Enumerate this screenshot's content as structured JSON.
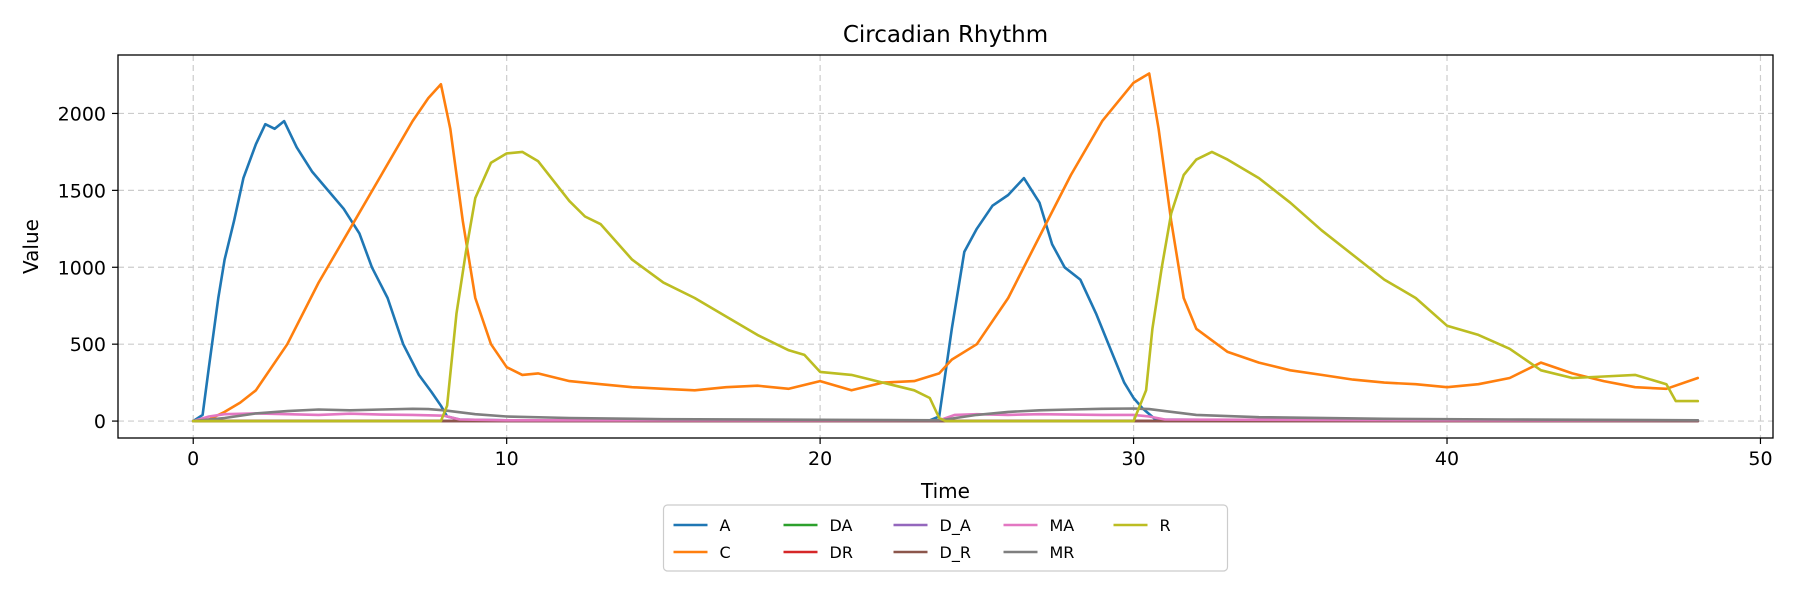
{
  "chart_data": {
    "type": "line",
    "title": "Circadian Rhythm",
    "xlabel": "Time",
    "ylabel": "Value",
    "xlim": [
      -2.4,
      50.4
    ],
    "ylim": [
      -110,
      2380
    ],
    "xticks": [
      0,
      10,
      20,
      30,
      40,
      50
    ],
    "yticks": [
      0,
      500,
      1000,
      1500,
      2000
    ],
    "grid": true,
    "legend_position": "bottom-center",
    "series": [
      {
        "name": "A",
        "color": "#1f77b4",
        "x": [
          0,
          0.3,
          0.5,
          0.8,
          1.0,
          1.3,
          1.6,
          2.0,
          2.3,
          2.6,
          2.9,
          3.3,
          3.8,
          4.3,
          4.8,
          5.3,
          5.7,
          6.2,
          6.7,
          7.2,
          7.6,
          7.9,
          8.1,
          8.5,
          10,
          15,
          20,
          23.5,
          23.8,
          24.2,
          24.6,
          25.0,
          25.5,
          26.0,
          26.5,
          27.0,
          27.4,
          27.8,
          28.3,
          28.8,
          29.3,
          29.7,
          30.0,
          30.3,
          30.7,
          35,
          40,
          45,
          48
        ],
        "y": [
          0,
          40,
          350,
          800,
          1050,
          1300,
          1580,
          1800,
          1930,
          1900,
          1950,
          1780,
          1620,
          1500,
          1380,
          1220,
          1000,
          800,
          500,
          300,
          190,
          100,
          30,
          10,
          5,
          5,
          5,
          5,
          30,
          600,
          1100,
          1250,
          1400,
          1470,
          1580,
          1420,
          1150,
          1000,
          920,
          700,
          450,
          250,
          150,
          80,
          10,
          5,
          5,
          5,
          5
        ]
      },
      {
        "name": "C",
        "color": "#ff7f0e",
        "x": [
          0,
          0.5,
          1,
          1.5,
          2,
          3,
          4,
          5,
          6,
          7,
          7.5,
          7.9,
          8.2,
          8.6,
          9,
          9.5,
          10,
          10.5,
          11,
          12,
          13,
          14,
          15,
          16,
          17,
          18,
          19,
          20,
          21,
          22,
          23,
          23.8,
          24.2,
          25,
          26,
          27,
          28,
          29,
          30,
          30.5,
          30.8,
          31.2,
          31.6,
          32,
          33,
          34,
          35,
          36,
          37,
          38,
          39,
          40,
          41,
          42,
          43,
          44,
          45,
          46,
          47,
          48
        ],
        "y": [
          0,
          10,
          60,
          120,
          200,
          500,
          900,
          1250,
          1600,
          1950,
          2100,
          2190,
          1900,
          1300,
          800,
          500,
          350,
          300,
          310,
          260,
          240,
          220,
          210,
          200,
          220,
          230,
          210,
          260,
          200,
          250,
          260,
          310,
          400,
          500,
          800,
          1200,
          1600,
          1950,
          2200,
          2260,
          1900,
          1300,
          800,
          600,
          450,
          380,
          330,
          300,
          270,
          250,
          240,
          220,
          240,
          280,
          380,
          310,
          260,
          220,
          210,
          280
        ]
      },
      {
        "name": "DA",
        "color": "#2ca02c",
        "x": [
          0,
          48
        ],
        "y": [
          1,
          1
        ]
      },
      {
        "name": "DR",
        "color": "#d62728",
        "x": [
          0,
          48
        ],
        "y": [
          1,
          1
        ]
      },
      {
        "name": "D_A",
        "color": "#9467bd",
        "x": [
          0,
          48
        ],
        "y": [
          0,
          0
        ]
      },
      {
        "name": "D_R",
        "color": "#8c564b",
        "x": [
          0,
          48
        ],
        "y": [
          0,
          0
        ]
      },
      {
        "name": "MA",
        "color": "#e377c2",
        "x": [
          0,
          0.5,
          1,
          2,
          3,
          4,
          5,
          6,
          7,
          8,
          8.5,
          10,
          20,
          23.8,
          24.3,
          25,
          26,
          27,
          28,
          29,
          30,
          30.5,
          31,
          40,
          48
        ],
        "y": [
          0,
          30,
          45,
          50,
          45,
          40,
          48,
          42,
          40,
          35,
          10,
          5,
          5,
          5,
          40,
          45,
          40,
          45,
          42,
          40,
          40,
          30,
          10,
          5,
          5
        ]
      },
      {
        "name": "MR",
        "color": "#7f7f7f",
        "x": [
          0,
          1,
          2,
          3,
          4,
          5,
          6,
          7,
          7.5,
          8,
          9,
          10,
          12,
          15,
          20,
          23.8,
          24,
          25,
          26,
          27,
          28,
          29,
          30,
          30.5,
          31,
          32,
          34,
          38,
          42,
          48
        ],
        "y": [
          0,
          20,
          50,
          65,
          75,
          70,
          75,
          80,
          78,
          70,
          45,
          30,
          20,
          12,
          8,
          5,
          10,
          40,
          60,
          70,
          75,
          80,
          82,
          78,
          65,
          40,
          25,
          15,
          10,
          5
        ]
      },
      {
        "name": "R",
        "color": "#bcbd22",
        "x": [
          0,
          7.9,
          8.1,
          8.4,
          8.7,
          9,
          9.5,
          10,
          10.5,
          11,
          11.5,
          12,
          12.5,
          13,
          14,
          15,
          16,
          17,
          18,
          19,
          19.5,
          20,
          21,
          22,
          23,
          23.5,
          23.8,
          24,
          30,
          30.4,
          30.6,
          30.9,
          31.2,
          31.6,
          32,
          32.5,
          33,
          34,
          35,
          36,
          37,
          38,
          39,
          40,
          41,
          42,
          43,
          44,
          45,
          46,
          47,
          47.3,
          48
        ],
        "y": [
          0,
          0,
          100,
          700,
          1100,
          1450,
          1680,
          1740,
          1750,
          1690,
          1560,
          1430,
          1330,
          1280,
          1050,
          900,
          800,
          680,
          560,
          460,
          430,
          320,
          300,
          250,
          200,
          150,
          20,
          0,
          0,
          200,
          600,
          1000,
          1350,
          1600,
          1700,
          1750,
          1700,
          1580,
          1420,
          1240,
          1080,
          920,
          800,
          620,
          560,
          470,
          330,
          280,
          290,
          300,
          240,
          130,
          130
        ]
      }
    ]
  }
}
